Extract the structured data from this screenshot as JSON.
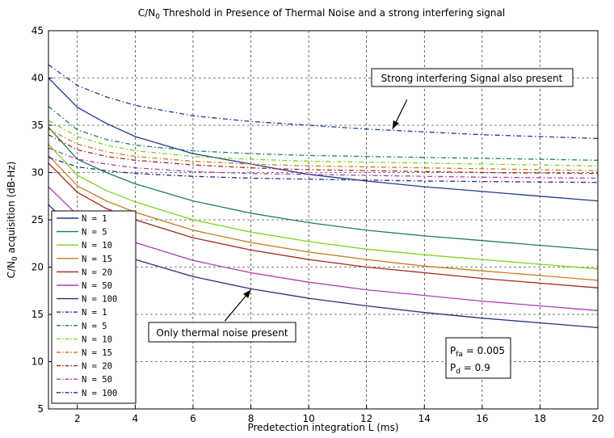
{
  "chart_data": {
    "type": "line",
    "title_prefix": "C/N",
    "title_sub": "0",
    "title_rest": " Threshold in Presence of Thermal Noise and a strong interfering signal",
    "xlabel": "Predetection integration L (ms)",
    "ylabel_prefix": "C/N",
    "ylabel_sub": "0",
    "ylabel_rest": " acquisition (dB-Hz)",
    "xlim": [
      1,
      20
    ],
    "ylim": [
      5,
      45
    ],
    "xticks": [
      2,
      4,
      6,
      8,
      10,
      12,
      14,
      16,
      18,
      20
    ],
    "yticks": [
      5,
      10,
      15,
      20,
      25,
      30,
      35,
      40,
      45
    ],
    "grid": true,
    "legend_position": "lower-left",
    "x": [
      1,
      2,
      3,
      4,
      6,
      8,
      10,
      12,
      14,
      16,
      18,
      20
    ],
    "series": [
      {
        "name": "N = 1",
        "style": "solid",
        "color": "#1f3a93",
        "values": [
          40.0,
          36.9,
          35.2,
          33.8,
          32.0,
          30.9,
          29.8,
          29.1,
          28.5,
          28.0,
          27.5,
          27.0
        ]
      },
      {
        "name": "N = 5",
        "style": "solid",
        "color": "#1e7f5c",
        "values": [
          34.8,
          31.4,
          30.0,
          28.8,
          27.0,
          25.7,
          24.7,
          23.9,
          23.3,
          22.8,
          22.3,
          21.8
        ]
      },
      {
        "name": "N = 10",
        "style": "solid",
        "color": "#7ed321",
        "values": [
          33.0,
          29.7,
          28.1,
          26.9,
          25.0,
          23.7,
          22.7,
          21.9,
          21.3,
          20.8,
          20.3,
          19.8
        ]
      },
      {
        "name": "N = 15",
        "style": "solid",
        "color": "#c97a1e",
        "values": [
          31.8,
          28.6,
          27.0,
          25.8,
          23.9,
          22.6,
          21.6,
          20.8,
          20.1,
          19.6,
          19.1,
          18.6
        ]
      },
      {
        "name": "N = 20",
        "style": "solid",
        "color": "#a0281e",
        "values": [
          31.0,
          27.9,
          26.2,
          25.0,
          23.1,
          21.8,
          20.8,
          20.0,
          19.4,
          18.8,
          18.3,
          17.8
        ]
      },
      {
        "name": "N = 50",
        "style": "solid",
        "color": "#b03bb5",
        "values": [
          28.5,
          25.5,
          23.8,
          22.6,
          20.7,
          19.4,
          18.4,
          17.6,
          17.0,
          16.4,
          15.9,
          15.4
        ]
      },
      {
        "name": "N = 100",
        "style": "solid",
        "color": "#2a2f7a",
        "values": [
          26.6,
          23.6,
          22.0,
          20.8,
          19.0,
          17.7,
          16.7,
          15.9,
          15.2,
          14.6,
          14.1,
          13.6
        ]
      },
      {
        "name": "N = 1",
        "style": "dashdot",
        "color": "#1f3a93",
        "values": [
          41.4,
          39.2,
          38.0,
          37.1,
          36.0,
          35.4,
          35.0,
          34.6,
          34.3,
          34.0,
          33.8,
          33.6
        ]
      },
      {
        "name": "N = 5",
        "style": "dashdot",
        "color": "#1e7f5c",
        "values": [
          37.0,
          34.5,
          33.5,
          32.9,
          32.3,
          32.0,
          31.8,
          31.7,
          31.6,
          31.5,
          31.4,
          31.3
        ]
      },
      {
        "name": "N = 10",
        "style": "dashdot",
        "color": "#7ed321",
        "values": [
          35.5,
          33.8,
          32.9,
          32.3,
          31.7,
          31.4,
          31.2,
          31.1,
          31.0,
          30.9,
          30.8,
          30.7
        ]
      },
      {
        "name": "N = 15",
        "style": "dashdot",
        "color": "#c97a1e",
        "values": [
          34.6,
          33.0,
          32.2,
          31.7,
          31.2,
          30.9,
          30.7,
          30.6,
          30.5,
          30.4,
          30.3,
          30.2
        ]
      },
      {
        "name": "N = 20",
        "style": "dashdot",
        "color": "#a0281e",
        "values": [
          34.0,
          32.4,
          31.7,
          31.3,
          30.8,
          30.5,
          30.3,
          30.2,
          30.1,
          30.0,
          29.95,
          29.9
        ]
      },
      {
        "name": "N = 50",
        "style": "dashdot",
        "color": "#b03bb5",
        "values": [
          32.6,
          31.4,
          30.9,
          30.5,
          30.1,
          29.9,
          29.8,
          29.7,
          29.6,
          29.5,
          29.45,
          29.4
        ]
      },
      {
        "name": "N = 100",
        "style": "dashdot",
        "color": "#2a2f7a",
        "values": [
          31.6,
          30.6,
          30.2,
          29.9,
          29.6,
          29.4,
          29.3,
          29.2,
          29.1,
          29.05,
          29.0,
          28.95
        ]
      }
    ],
    "annotations": {
      "interfering_label": "Strong interfering Signal also present",
      "interfering_arrow_target": [
        12.9,
        34.6
      ],
      "interfering_arrow_from": [
        13.4,
        37.7
      ],
      "thermal_label": "Only thermal noise present",
      "thermal_arrow_target": [
        8.0,
        17.6
      ],
      "thermal_arrow_from": [
        7.1,
        14.3
      ]
    },
    "params": {
      "pfa_prefix": "P",
      "pfa_sub": "fa",
      "pfa_value": " = 0.005",
      "pd_prefix": "P",
      "pd_sub": "d",
      "pd_value": " = 0.9"
    }
  }
}
